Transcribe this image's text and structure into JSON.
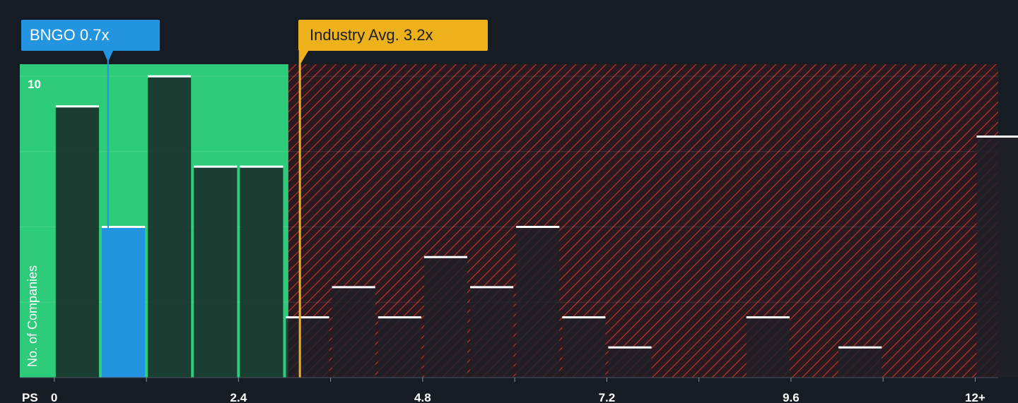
{
  "company_label": "BNGO 0.7x",
  "industry_label": "Industry Avg. 3.2x",
  "colors": {
    "background": "#161c24",
    "fair_zone": "#2ecc7a",
    "company_bar": "#2394e0",
    "industry_line": "#ecb11b",
    "overvalued_hatch": "#c0392b"
  },
  "chart_data": {
    "type": "bar",
    "xlabel": "PS",
    "ylabel": "No. of Companies",
    "x_ticks": [
      "0",
      "2.4",
      "4.8",
      "7.2",
      "9.6",
      "12+"
    ],
    "y_ticks": [
      "10"
    ],
    "bin_width": 0.6,
    "bins": [
      {
        "x": 0.0,
        "count": 9
      },
      {
        "x": 0.6,
        "count": 5,
        "highlight": true
      },
      {
        "x": 1.2,
        "count": 10
      },
      {
        "x": 1.8,
        "count": 7
      },
      {
        "x": 2.4,
        "count": 7
      },
      {
        "x": 3.0,
        "count": 2
      },
      {
        "x": 3.6,
        "count": 3
      },
      {
        "x": 4.2,
        "count": 2
      },
      {
        "x": 4.8,
        "count": 4
      },
      {
        "x": 5.4,
        "count": 3
      },
      {
        "x": 6.0,
        "count": 5
      },
      {
        "x": 6.6,
        "count": 2
      },
      {
        "x": 7.2,
        "count": 1
      },
      {
        "x": 9.0,
        "count": 2
      },
      {
        "x": 10.2,
        "count": 1
      },
      {
        "x": 12.0,
        "count": 8
      }
    ],
    "company_value": 0.7,
    "industry_avg": 3.2,
    "fair_zone_max": 3.05,
    "xlim": [
      -0.45,
      12.3
    ],
    "ylim": [
      0,
      10.4
    ]
  }
}
